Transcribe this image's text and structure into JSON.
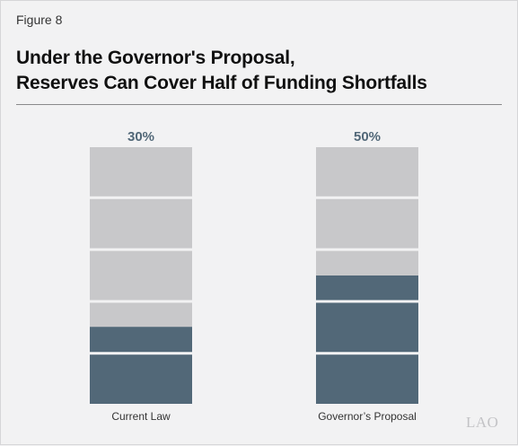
{
  "figure_label": "Figure 8",
  "title_line1": "Under the Governor's Proposal,",
  "title_line2": "Reserves Can Cover Half of Funding Shortfalls",
  "logo_text": "LAO",
  "colors": {
    "covered": "#526878",
    "uncovered": "#c8c8ca",
    "value_label": "#526878"
  },
  "chart_data": {
    "type": "bar",
    "categories": [
      "Current Law",
      "Governor’s Proposal"
    ],
    "values": [
      30,
      50
    ],
    "value_labels": [
      "30%",
      "50%"
    ],
    "segments_per_bar": 5,
    "ylim": [
      0,
      100
    ],
    "title": "Under the Governor's Proposal, Reserves Can Cover Half of Funding Shortfalls",
    "xlabel": "",
    "ylabel": ""
  }
}
